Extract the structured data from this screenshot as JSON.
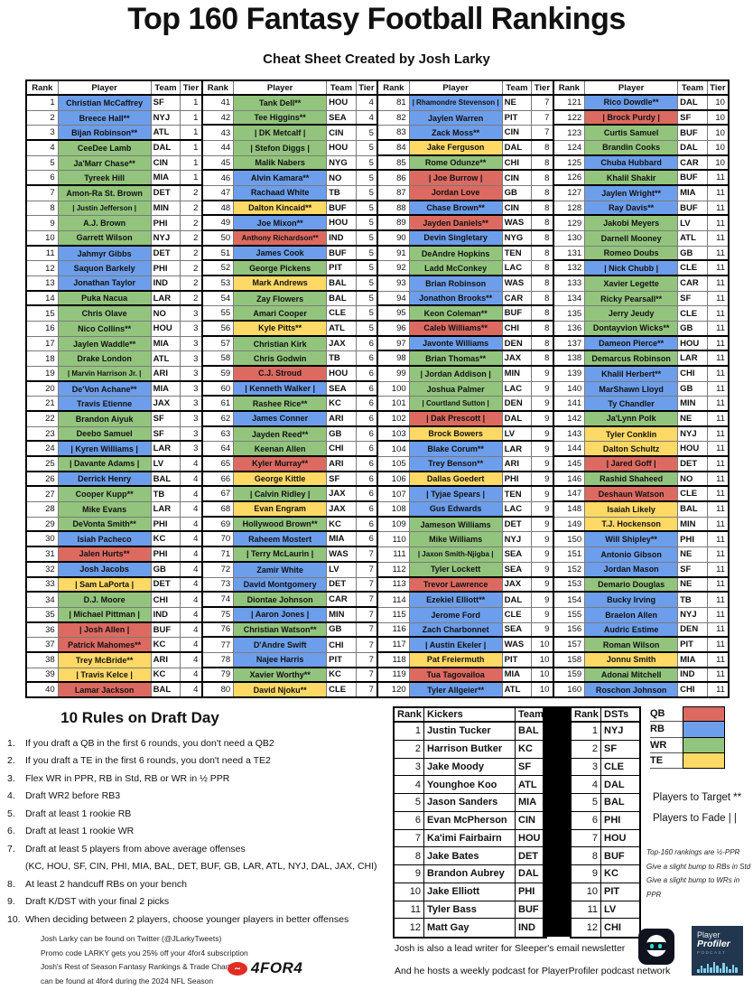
{
  "title": "Top 160 Fantasy Football Rankings",
  "subtitle": "Cheat Sheet Created by Josh Larky",
  "colors": {
    "QB": "#DC6A61",
    "RB": "#6D9EEB",
    "WR": "#93C47D",
    "TE": "#FFD966"
  },
  "table": {
    "headers": {
      "rank": "Rank",
      "player": "Player",
      "team": "Team",
      "tier": "Tier"
    },
    "players": [
      [
        1,
        "Christian McCaffrey",
        "SF",
        1,
        "RB"
      ],
      [
        2,
        "Breece Hall**",
        "NYJ",
        1,
        "RB"
      ],
      [
        3,
        "Bijan Robinson**",
        "ATL",
        1,
        "RB"
      ],
      [
        4,
        "CeeDee Lamb",
        "DAL",
        1,
        "WR"
      ],
      [
        5,
        "Ja'Marr Chase**",
        "CIN",
        1,
        "WR"
      ],
      [
        6,
        "Tyreek Hill",
        "MIA",
        1,
        "WR"
      ],
      [
        7,
        "Amon-Ra St. Brown",
        "DET",
        2,
        "WR"
      ],
      [
        8,
        "| Justin Jefferson |",
        "MIN",
        2,
        "WR"
      ],
      [
        9,
        "A.J. Brown",
        "PHI",
        2,
        "WR"
      ],
      [
        10,
        "Garrett Wilson",
        "NYJ",
        2,
        "WR"
      ],
      [
        11,
        "Jahmyr Gibbs",
        "DET",
        2,
        "RB"
      ],
      [
        12,
        "Saquon Barkely",
        "PHI",
        2,
        "RB"
      ],
      [
        13,
        "Jonathan Taylor",
        "IND",
        2,
        "RB"
      ],
      [
        14,
        "Puka Nacua",
        "LAR",
        2,
        "WR"
      ],
      [
        15,
        "Chris Olave",
        "NO",
        3,
        "WR"
      ],
      [
        16,
        "Nico Collins**",
        "HOU",
        3,
        "WR"
      ],
      [
        17,
        "Jaylen Waddle**",
        "MIA",
        3,
        "WR"
      ],
      [
        18,
        "Drake London",
        "ATL",
        3,
        "WR"
      ],
      [
        19,
        "| Marvin Harrison Jr. |",
        "ARI",
        3,
        "WR"
      ],
      [
        20,
        "De'Von Achane**",
        "MIA",
        3,
        "RB"
      ],
      [
        21,
        "Travis Etienne",
        "JAX",
        3,
        "RB"
      ],
      [
        22,
        "Brandon Aiyuk",
        "SF",
        3,
        "WR"
      ],
      [
        23,
        "Deebo Samuel",
        "SF",
        3,
        "WR"
      ],
      [
        24,
        "| Kyren Williams |",
        "LAR",
        3,
        "RB"
      ],
      [
        25,
        "| Davante Adams |",
        "LV",
        4,
        "WR"
      ],
      [
        26,
        "Derrick Henry",
        "BAL",
        4,
        "RB"
      ],
      [
        27,
        "Cooper Kupp**",
        "TB",
        4,
        "WR"
      ],
      [
        28,
        "Mike Evans",
        "LAR",
        4,
        "WR"
      ],
      [
        29,
        "DeVonta Smith**",
        "PHI",
        4,
        "WR"
      ],
      [
        30,
        "Isiah Pacheco",
        "KC",
        4,
        "RB"
      ],
      [
        31,
        "Jalen Hurts**",
        "PHI",
        4,
        "QB"
      ],
      [
        32,
        "Josh Jacobs",
        "GB",
        4,
        "RB"
      ],
      [
        33,
        "| Sam LaPorta |",
        "DET",
        4,
        "TE"
      ],
      [
        34,
        "D.J. Moore",
        "CHI",
        4,
        "WR"
      ],
      [
        35,
        "| Michael Pittman |",
        "IND",
        4,
        "WR"
      ],
      [
        36,
        "| Josh Allen |",
        "BUF",
        4,
        "QB"
      ],
      [
        37,
        "Patrick Mahomes**",
        "KC",
        4,
        "QB"
      ],
      [
        38,
        "Trey McBride**",
        "ARI",
        4,
        "TE"
      ],
      [
        39,
        "| Travis Kelce |",
        "KC",
        4,
        "TE"
      ],
      [
        40,
        "Lamar Jackson",
        "BAL",
        4,
        "QB"
      ],
      [
        41,
        "Tank Dell**",
        "HOU",
        4,
        "WR"
      ],
      [
        42,
        "Tee Higgins**",
        "SEA",
        4,
        "WR"
      ],
      [
        43,
        "| DK Metcalf |",
        "CIN",
        5,
        "WR"
      ],
      [
        44,
        "| Stefon Diggs |",
        "HOU",
        5,
        "WR"
      ],
      [
        45,
        "Malik Nabers",
        "NYG",
        5,
        "WR"
      ],
      [
        46,
        "Alvin Kamara**",
        "NO",
        5,
        "RB"
      ],
      [
        47,
        "Rachaad White",
        "TB",
        5,
        "RB"
      ],
      [
        48,
        "Dalton Kincaid**",
        "BUF",
        5,
        "TE"
      ],
      [
        49,
        "Joe Mixon**",
        "HOU",
        5,
        "RB"
      ],
      [
        50,
        "Anthony Richardson**",
        "IND",
        5,
        "QB"
      ],
      [
        51,
        "James Cook",
        "BUF",
        5,
        "RB"
      ],
      [
        52,
        "George Pickens",
        "PIT",
        5,
        "WR"
      ],
      [
        53,
        "Mark Andrews",
        "BAL",
        5,
        "TE"
      ],
      [
        54,
        "Zay Flowers",
        "BAL",
        5,
        "WR"
      ],
      [
        55,
        "Amari Cooper",
        "CLE",
        5,
        "WR"
      ],
      [
        56,
        "Kyle Pitts**",
        "ATL",
        5,
        "TE"
      ],
      [
        57,
        "Christian Kirk",
        "JAX",
        6,
        "WR"
      ],
      [
        58,
        "Chris Godwin",
        "TB",
        6,
        "WR"
      ],
      [
        59,
        "C.J. Stroud",
        "HOU",
        6,
        "QB"
      ],
      [
        60,
        "| Kenneth Walker |",
        "SEA",
        6,
        "RB"
      ],
      [
        61,
        "Rashee Rice**",
        "KC",
        6,
        "WR"
      ],
      [
        62,
        "James Conner",
        "ARI",
        6,
        "RB"
      ],
      [
        63,
        "Jayden Reed**",
        "GB",
        6,
        "WR"
      ],
      [
        64,
        "Keenan Allen",
        "CHI",
        6,
        "WR"
      ],
      [
        65,
        "Kyler Murray**",
        "ARI",
        6,
        "QB"
      ],
      [
        66,
        "George Kittle",
        "SF",
        6,
        "TE"
      ],
      [
        67,
        "| Calvin Ridley |",
        "JAX",
        6,
        "WR"
      ],
      [
        68,
        "Evan Engram",
        "JAX",
        6,
        "TE"
      ],
      [
        69,
        "Hollywood Brown**",
        "KC",
        6,
        "WR"
      ],
      [
        70,
        "Raheem Mostert",
        "MIA",
        6,
        "RB"
      ],
      [
        71,
        "| Terry McLaurin |",
        "WAS",
        7,
        "WR"
      ],
      [
        72,
        "Zamir White",
        "LV",
        7,
        "RB"
      ],
      [
        73,
        "David Montgomery",
        "DET",
        7,
        "RB"
      ],
      [
        74,
        "Diontae Johnson",
        "CAR",
        7,
        "WR"
      ],
      [
        75,
        "| Aaron Jones |",
        "MIN",
        7,
        "RB"
      ],
      [
        76,
        "Christian Watson**",
        "GB",
        7,
        "WR"
      ],
      [
        77,
        "D'Andre Swift",
        "CHI",
        7,
        "RB"
      ],
      [
        78,
        "Najee Harris",
        "PIT",
        7,
        "RB"
      ],
      [
        79,
        "Xavier Worthy**",
        "KC",
        7,
        "WR"
      ],
      [
        80,
        "David Njoku**",
        "CLE",
        7,
        "TE"
      ],
      [
        81,
        "| Rhamondre Stevenson |",
        "NE",
        7,
        "RB"
      ],
      [
        82,
        "Jaylen Warren",
        "PIT",
        7,
        "RB"
      ],
      [
        83,
        "Zack Moss**",
        "CIN",
        7,
        "RB"
      ],
      [
        84,
        "Jake Ferguson",
        "DAL",
        8,
        "TE"
      ],
      [
        85,
        "Rome Odunze**",
        "CHI",
        8,
        "WR"
      ],
      [
        86,
        "| Joe Burrow |",
        "CIN",
        8,
        "QB"
      ],
      [
        87,
        "Jordan Love",
        "GB",
        8,
        "QB"
      ],
      [
        88,
        "Chase Brown**",
        "CIN",
        8,
        "RB"
      ],
      [
        89,
        "Jayden Daniels**",
        "WAS",
        8,
        "QB"
      ],
      [
        90,
        "Devin Singletary",
        "NYG",
        8,
        "RB"
      ],
      [
        91,
        "DeAndre Hopkins",
        "TEN",
        8,
        "WR"
      ],
      [
        92,
        "Ladd McConkey",
        "LAC",
        8,
        "WR"
      ],
      [
        93,
        "Brian Robinson",
        "WAS",
        8,
        "RB"
      ],
      [
        94,
        "Jonathon Brooks**",
        "CAR",
        8,
        "RB"
      ],
      [
        95,
        "Keon Coleman**",
        "BUF",
        8,
        "WR"
      ],
      [
        96,
        "Caleb Williams**",
        "CHI",
        8,
        "QB"
      ],
      [
        97,
        "Javonte Williams",
        "DEN",
        8,
        "RB"
      ],
      [
        98,
        "Brian Thomas**",
        "JAX",
        8,
        "WR"
      ],
      [
        99,
        "| Jordan Addison |",
        "MIN",
        9,
        "WR"
      ],
      [
        100,
        "Joshua Palmer",
        "LAC",
        9,
        "WR"
      ],
      [
        101,
        "| Courtland Sutton |",
        "DEN",
        9,
        "WR"
      ],
      [
        102,
        "| Dak Prescott |",
        "DAL",
        9,
        "QB"
      ],
      [
        103,
        "Brock Bowers",
        "LV",
        9,
        "TE"
      ],
      [
        104,
        "Blake Corum**",
        "LAR",
        9,
        "RB"
      ],
      [
        105,
        "Trey Benson**",
        "ARI",
        9,
        "RB"
      ],
      [
        106,
        "Dallas Goedert",
        "PHI",
        9,
        "TE"
      ],
      [
        107,
        "| Tyjae Spears |",
        "TEN",
        9,
        "RB"
      ],
      [
        108,
        "Gus Edwards",
        "LAC",
        9,
        "RB"
      ],
      [
        109,
        "Jameson Williams",
        "DET",
        9,
        "WR"
      ],
      [
        110,
        "Mike Williams",
        "NYJ",
        9,
        "WR"
      ],
      [
        111,
        "| Jaxon Smith-Njigba |",
        "SEA",
        9,
        "WR"
      ],
      [
        112,
        "Tyler Lockett",
        "SEA",
        9,
        "WR"
      ],
      [
        113,
        "Trevor Lawrence",
        "JAX",
        9,
        "QB"
      ],
      [
        114,
        "Ezekiel Elliott**",
        "DAL",
        9,
        "RB"
      ],
      [
        115,
        "Jerome Ford",
        "CLE",
        9,
        "RB"
      ],
      [
        116,
        "Zach Charbonnet",
        "SEA",
        9,
        "RB"
      ],
      [
        117,
        "| Austin Ekeler |",
        "WAS",
        10,
        "RB"
      ],
      [
        118,
        "Pat Freiermuth",
        "PIT",
        10,
        "TE"
      ],
      [
        119,
        "Tua Tagovailoa",
        "MIA",
        10,
        "QB"
      ],
      [
        120,
        "Tyler Allgeier**",
        "ATL",
        10,
        "RB"
      ],
      [
        121,
        "Rico Dowdle**",
        "DAL",
        10,
        "RB"
      ],
      [
        122,
        "| Brock Purdy |",
        "SF",
        10,
        "QB"
      ],
      [
        123,
        "Curtis Samuel",
        "BUF",
        10,
        "WR"
      ],
      [
        124,
        "Brandin Cooks",
        "DAL",
        10,
        "WR"
      ],
      [
        125,
        "Chuba Hubbard",
        "CAR",
        10,
        "RB"
      ],
      [
        126,
        "Khalil Shakir",
        "BUF",
        11,
        "WR"
      ],
      [
        127,
        "Jaylen Wright**",
        "MIA",
        11,
        "RB"
      ],
      [
        128,
        "Ray Davis**",
        "BUF",
        11,
        "RB"
      ],
      [
        129,
        "Jakobi Meyers",
        "LV",
        11,
        "WR"
      ],
      [
        130,
        "Darnell Mooney",
        "ATL",
        11,
        "WR"
      ],
      [
        131,
        "Romeo Doubs",
        "GB",
        11,
        "WR"
      ],
      [
        132,
        "| Nick Chubb |",
        "CLE",
        11,
        "RB"
      ],
      [
        133,
        "Xavier Legette",
        "CAR",
        11,
        "WR"
      ],
      [
        134,
        "Ricky Pearsall**",
        "SF",
        11,
        "WR"
      ],
      [
        135,
        "Jerry Jeudy",
        "CLE",
        11,
        "WR"
      ],
      [
        136,
        "Dontayvion Wicks**",
        "GB",
        11,
        "WR"
      ],
      [
        137,
        "Dameon Pierce**",
        "HOU",
        11,
        "RB"
      ],
      [
        138,
        "Demarcus Robinson",
        "LAR",
        11,
        "WR"
      ],
      [
        139,
        "Khalil Herbert**",
        "CHI",
        11,
        "RB"
      ],
      [
        140,
        "MarShawn Lloyd",
        "GB",
        11,
        "RB"
      ],
      [
        141,
        "Ty Chandler",
        "MIN",
        11,
        "RB"
      ],
      [
        142,
        "Ja'Lynn Polk",
        "NE",
        11,
        "WR"
      ],
      [
        143,
        "Tyler Conklin",
        "NYJ",
        11,
        "TE"
      ],
      [
        144,
        "Dalton Schultz",
        "HOU",
        11,
        "TE"
      ],
      [
        145,
        "| Jared Goff |",
        "DET",
        11,
        "QB"
      ],
      [
        146,
        "Rashid Shaheed",
        "NO",
        11,
        "WR"
      ],
      [
        147,
        "Deshaun Watson",
        "CLE",
        11,
        "QB"
      ],
      [
        148,
        "Isaiah Likely",
        "BAL",
        11,
        "TE"
      ],
      [
        149,
        "T.J. Hockenson",
        "MIN",
        11,
        "TE"
      ],
      [
        150,
        "Will Shipley**",
        "PHI",
        11,
        "RB"
      ],
      [
        151,
        "Antonio Gibson",
        "NE",
        11,
        "RB"
      ],
      [
        152,
        "Jordan Mason",
        "SF",
        11,
        "RB"
      ],
      [
        153,
        "Demario Douglas",
        "NE",
        11,
        "WR"
      ],
      [
        154,
        "Bucky Irving",
        "TB",
        11,
        "RB"
      ],
      [
        155,
        "Braelon Allen",
        "NYJ",
        11,
        "RB"
      ],
      [
        156,
        "Audric Estime",
        "DEN",
        11,
        "RB"
      ],
      [
        157,
        "Roman Wilson",
        "PIT",
        11,
        "WR"
      ],
      [
        158,
        "Jonnu Smith",
        "MIA",
        11,
        "TE"
      ],
      [
        159,
        "Adonai Mitchell",
        "IND",
        11,
        "WR"
      ],
      [
        160,
        "Roschon Johnson",
        "CHI",
        11,
        "RB"
      ]
    ]
  },
  "rules": {
    "heading": "10 Rules on Draft Day",
    "items": [
      "If you draft a QB in the first 6 rounds, you don't need a QB2",
      "If you draft a TE in the first 6 rounds, you don't need a TE2",
      "Flex WR in PPR, RB in Std, RB or WR in ½ PPR",
      "Draft WR2 before RB3",
      "Draft at least 1 rookie RB",
      "Draft at least 1 rookie WR",
      "Draft at least 5 players from above average offenses",
      "At least 2 handcuff RBs on your bench",
      "Draft K/DST with your final 2 picks",
      "When deciding between 2 players, choose younger players in better offenses"
    ],
    "offenses": "(KC, HOU, SF, CIN, PHI, MIA, BAL, DET, BUF, GB, LAR, ATL, NYJ, DAL, JAX, CHI)"
  },
  "footer_left": {
    "lines": [
      "Josh Larky can be found on Twitter (@JLarkyTweets)",
      "Promo code LARKY gets you 25% off your 4for4 subscription",
      "Josh's Rest of Season Fantasy Rankings & Trade Chart",
      "can be found at 4for4 during the 2024 NFL Season"
    ],
    "logo_text": "4FOR4"
  },
  "kickers": {
    "headers": [
      "Rank",
      "Kickers",
      "Team"
    ],
    "rows": [
      [
        "1",
        "Justin Tucker",
        "BAL"
      ],
      [
        "2",
        "Harrison Butker",
        "KC"
      ],
      [
        "3",
        "Jake Moody",
        "SF"
      ],
      [
        "4",
        "Younghoe Koo",
        "ATL"
      ],
      [
        "5",
        "Jason Sanders",
        "MIA"
      ],
      [
        "6",
        "Evan McPherson",
        "CIN"
      ],
      [
        "7",
        "Ka'imi Fairbairn",
        "HOU"
      ],
      [
        "8",
        "Jake Bates",
        "DET"
      ],
      [
        "9",
        "Brandon Aubrey",
        "DAL"
      ],
      [
        "10",
        "Jake Elliott",
        "PHI"
      ],
      [
        "11",
        "Tyler Bass",
        "BUF"
      ],
      [
        "12",
        "Matt Gay",
        "IND"
      ]
    ]
  },
  "dsts": {
    "headers": [
      "Rank",
      "DSTs"
    ],
    "rows": [
      [
        "1",
        "NYJ"
      ],
      [
        "2",
        "SF"
      ],
      [
        "3",
        "CLE"
      ],
      [
        "4",
        "DAL"
      ],
      [
        "5",
        "BAL"
      ],
      [
        "6",
        "PHI"
      ],
      [
        "7",
        "HOU"
      ],
      [
        "8",
        "BUF"
      ],
      [
        "9",
        "KC"
      ],
      [
        "10",
        "PIT"
      ],
      [
        "11",
        "LV"
      ],
      [
        "12",
        "CHI"
      ]
    ]
  },
  "legend": {
    "entries": [
      {
        "label": "QB",
        "color": "#DC6A61"
      },
      {
        "label": "RB",
        "color": "#6D9EEB"
      },
      {
        "label": "WR",
        "color": "#93C47D"
      },
      {
        "label": "TE",
        "color": "#FFD966"
      }
    ],
    "target": "Players to Target **",
    "fade": "Players to Fade | |",
    "notes": [
      "Top-160 rankings are ½-PPR",
      "Give a slight bump to RBs in Std",
      "Give a slight bump to WRs in PPR"
    ]
  },
  "footer_right": {
    "lines": [
      "Josh is also a lead writer for Sleeper's email newsletter",
      "And he hosts a weekly podcast for PlayerProfiler podcast network"
    ]
  },
  "logos": {
    "playerprofiler": {
      "line1": "Player",
      "line2": "Profiler",
      "line3": "PODCAST"
    }
  }
}
